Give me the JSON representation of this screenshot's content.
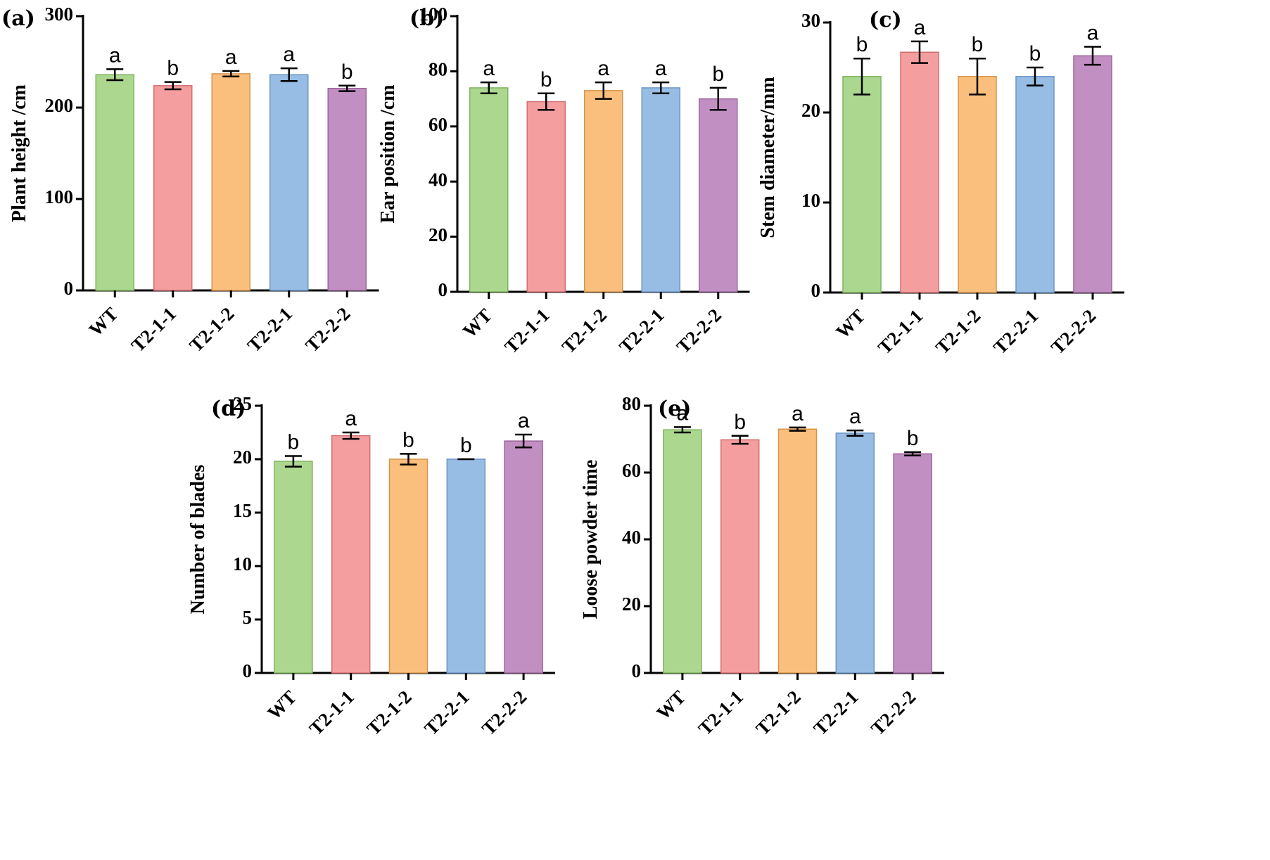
{
  "figure": {
    "colors": [
      "#acd78e",
      "#f59ea0",
      "#fbbf7d",
      "#97bde4",
      "#c28fc2"
    ],
    "edge_colors": [
      "#7fb45e",
      "#d06f72",
      "#d6954c",
      "#6b97c6",
      "#9d659d"
    ]
  },
  "chart_data": [
    {
      "panel": "(a)",
      "type": "bar",
      "categories": [
        "WT",
        "T2-1-1",
        "T2-1-2",
        "T2-2-1",
        "T2-2-2"
      ],
      "values": [
        236,
        224,
        237,
        236,
        221
      ],
      "errors": [
        6,
        4,
        3,
        7,
        3
      ],
      "significance": [
        "a",
        "b",
        "a",
        "a",
        "b"
      ],
      "ylabel": "Plant height /cm",
      "ylim": [
        0,
        300
      ],
      "yticks": [
        0,
        100,
        200,
        300
      ]
    },
    {
      "panel": "(b)",
      "type": "bar",
      "categories": [
        "WT",
        "T2-1-1",
        "T2-1-2",
        "T2-2-1",
        "T2-2-2"
      ],
      "values": [
        74,
        69,
        73,
        74,
        70
      ],
      "errors": [
        2,
        3,
        3,
        2,
        4
      ],
      "significance": [
        "a",
        "b",
        "a",
        "a",
        "b"
      ],
      "ylabel": "Ear position /cm",
      "ylim": [
        0,
        100
      ],
      "yticks": [
        0,
        20,
        40,
        60,
        80,
        100
      ]
    },
    {
      "panel": "(c)",
      "type": "bar",
      "categories": [
        "WT",
        "T2-1-1",
        "T2-1-2",
        "T2-2-1",
        "T2-2-2"
      ],
      "values": [
        24,
        26.7,
        24,
        24,
        26.3
      ],
      "errors": [
        2,
        1.2,
        2,
        1,
        1
      ],
      "significance": [
        "b",
        "a",
        "b",
        "b",
        "a"
      ],
      "ylabel": "Stem diameter/mm",
      "ylim": [
        0,
        30
      ],
      "yticks": [
        0,
        10,
        20,
        30
      ]
    },
    {
      "panel": "(d)",
      "type": "bar",
      "categories": [
        "WT",
        "T2-1-1",
        "T2-1-2",
        "T2-2-1",
        "T2-2-2"
      ],
      "values": [
        19.8,
        22.2,
        20,
        20,
        21.7
      ],
      "errors": [
        0.5,
        0.3,
        0.5,
        0,
        0.6
      ],
      "significance": [
        "b",
        "a",
        "b",
        "b",
        "a"
      ],
      "ylabel": "Number of blades",
      "ylim": [
        0,
        25
      ],
      "yticks": [
        0,
        5,
        10,
        15,
        20,
        25
      ]
    },
    {
      "panel": "(e)",
      "type": "bar",
      "categories": [
        "WT",
        "T2-1-1",
        "T2-1-2",
        "T2-2-1",
        "T2-2-2"
      ],
      "values": [
        72.8,
        69.8,
        73,
        71.8,
        65.6
      ],
      "errors": [
        0.8,
        1.2,
        0.5,
        0.8,
        0.5
      ],
      "significance": [
        "a",
        "b",
        "a",
        "a",
        "b"
      ],
      "ylabel": "Loose powder time",
      "ylim": [
        0,
        80
      ],
      "yticks": [
        0,
        20,
        40,
        60,
        80
      ]
    }
  ]
}
